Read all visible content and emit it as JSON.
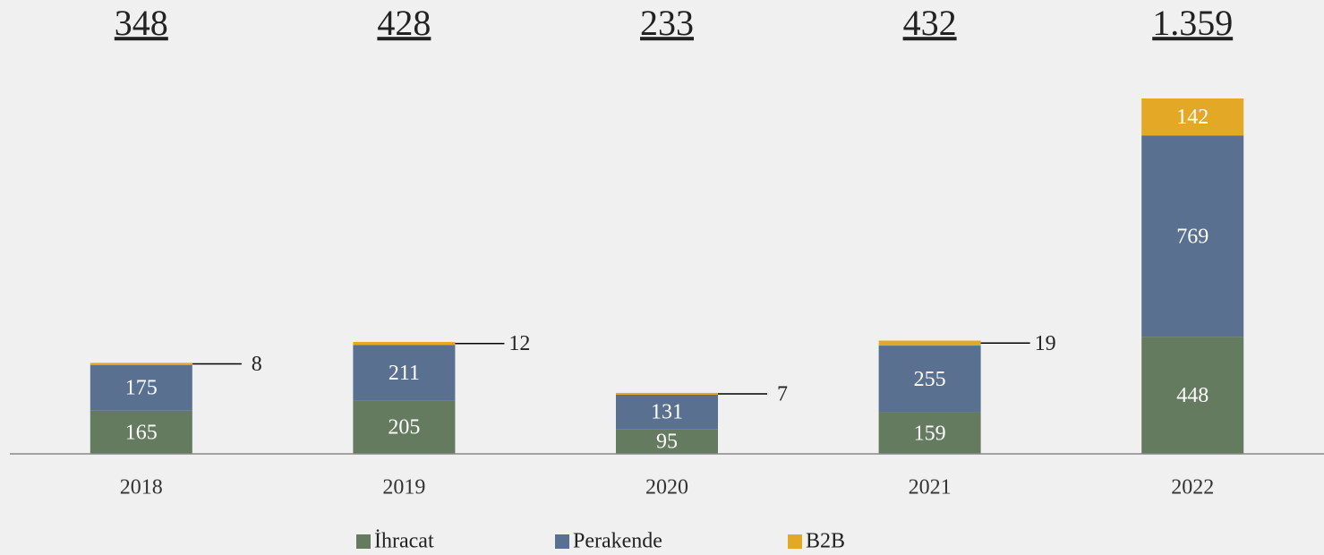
{
  "chart_data": {
    "type": "bar",
    "stacked": true,
    "categories": [
      "2018",
      "2019",
      "2020",
      "2021",
      "2022"
    ],
    "series": [
      {
        "name": "İhracat",
        "color": "#647b60",
        "values": [
          165,
          205,
          95,
          159,
          448
        ]
      },
      {
        "name": "Perakende",
        "color": "#5a7090",
        "values": [
          175,
          211,
          131,
          255,
          769
        ]
      },
      {
        "name": "B2B",
        "color": "#e2a826",
        "values": [
          8,
          12,
          7,
          19,
          142
        ]
      }
    ],
    "totals": {
      "values": [
        348,
        428,
        233,
        432,
        1359
      ],
      "value_labels": [
        "348",
        "428",
        "233",
        "432",
        "1.359"
      ]
    },
    "ylim": [
      0,
      1359
    ],
    "legend": "bottom"
  }
}
